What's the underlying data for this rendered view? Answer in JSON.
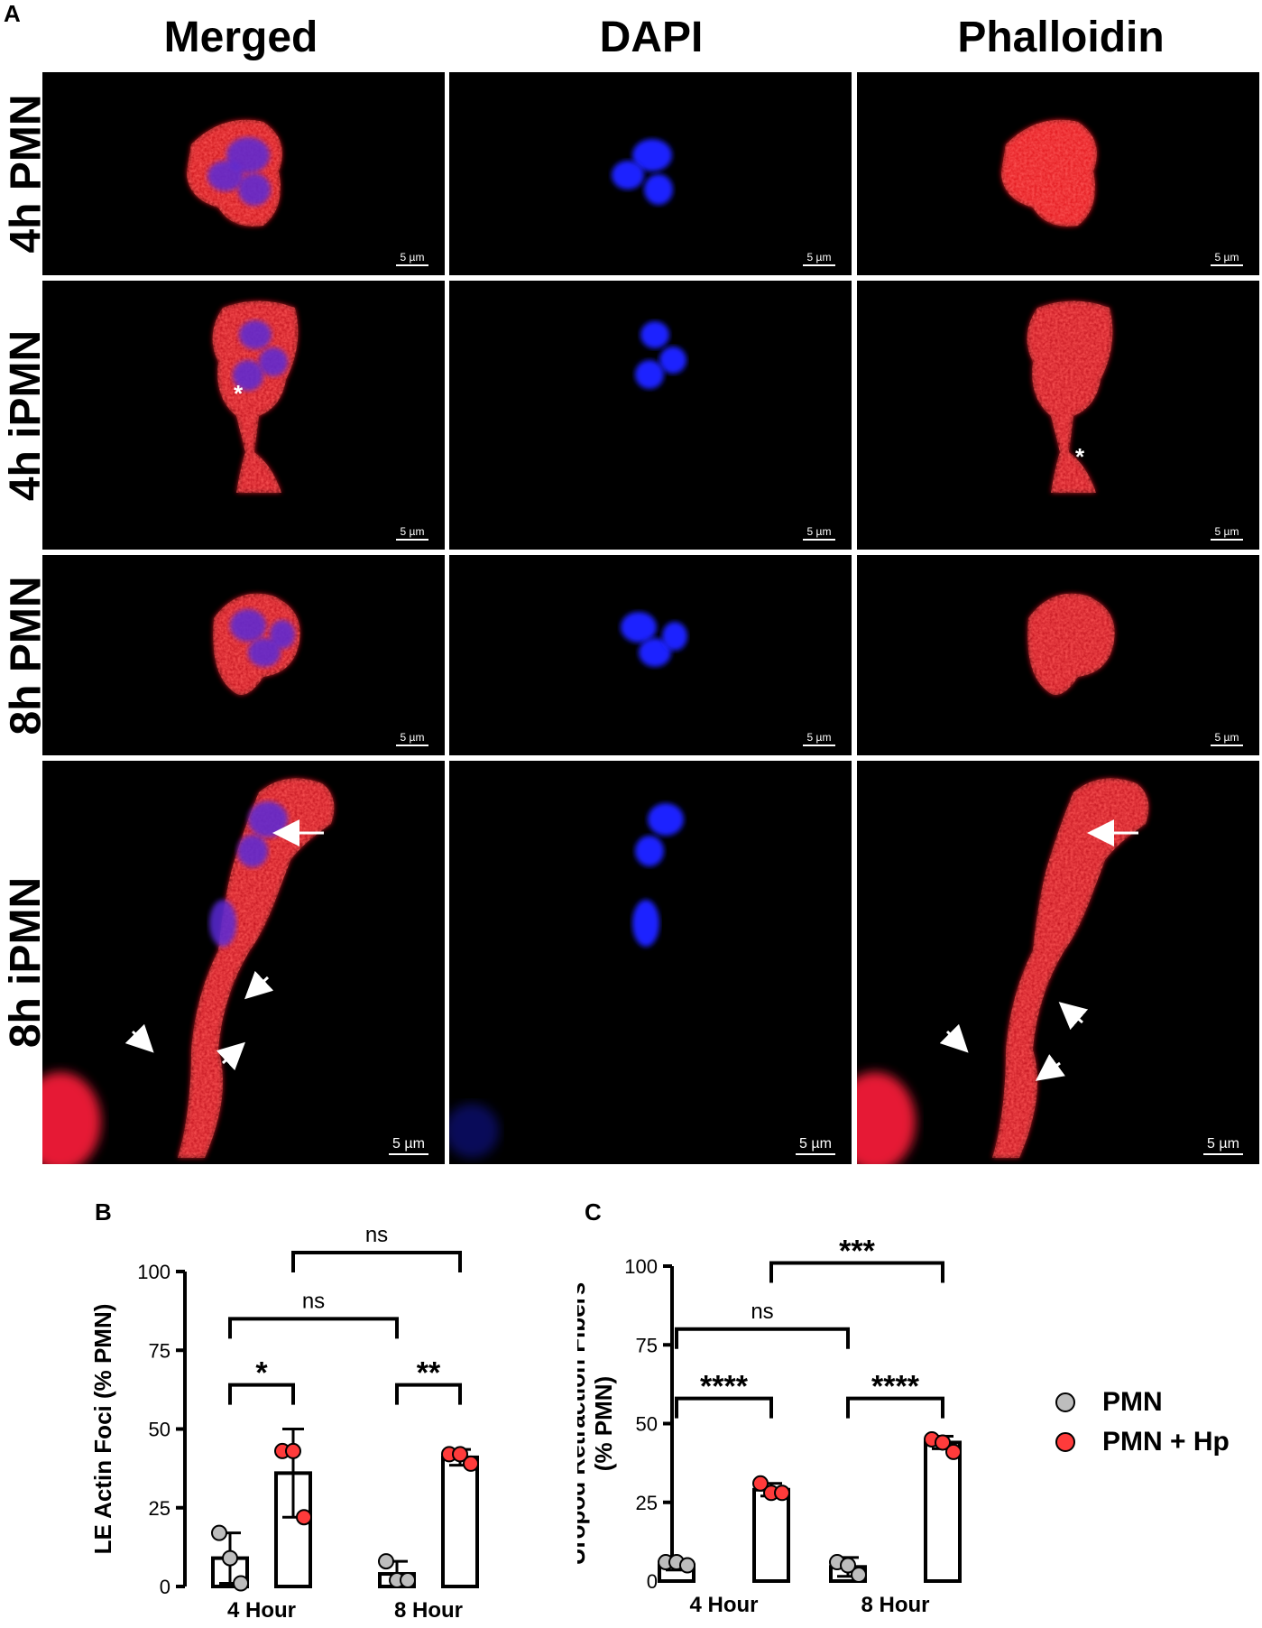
{
  "figure": {
    "panel_letters": {
      "a": "A",
      "b": "B",
      "c": "C"
    },
    "columns": [
      "Merged",
      "DAPI",
      "Phalloidin"
    ],
    "rows": [
      "4h PMN",
      "4h iPMN",
      "8h PMN",
      "8h iPMN"
    ],
    "scale_bar": "5 µm",
    "annotations": {
      "asterisk": "*"
    },
    "colors": {
      "nucleus": "#1a24ff",
      "actin": "#ff1a1a",
      "background": "#000000"
    }
  },
  "legend": {
    "items": [
      {
        "label": "PMN",
        "color": "#bdbdbd"
      },
      {
        "label": "PMN + Hp",
        "color": "#ff3b3b"
      }
    ]
  },
  "chart_data": [
    {
      "type": "bar",
      "ylabel": "LE Actin Foci (% PMN)",
      "categories": [
        "4 Hour",
        "8 Hour"
      ],
      "ylim": [
        0,
        100
      ],
      "yticks": [
        "0",
        "25",
        "50",
        "75",
        "100"
      ],
      "series": [
        {
          "name": "PMN",
          "values": [
            9,
            4
          ],
          "errors": [
            8,
            4
          ],
          "points": [
            [
              17,
              9,
              1
            ],
            [
              8,
              2,
              2
            ]
          ],
          "color": "#bdbdbd"
        },
        {
          "name": "PMN + Hp",
          "values": [
            36,
            41
          ],
          "errors": [
            14,
            2.5
          ],
          "points": [
            [
              43,
              43,
              22
            ],
            [
              42,
              42,
              39
            ]
          ],
          "color": "#ff3b3b"
        }
      ],
      "comparisons": [
        {
          "label": "*",
          "from": [
            0,
            0
          ],
          "to": [
            0,
            1
          ],
          "level": 64
        },
        {
          "label": "**",
          "from": [
            1,
            0
          ],
          "to": [
            1,
            1
          ],
          "level": 64
        },
        {
          "label": "ns",
          "from": [
            0,
            0
          ],
          "to": [
            1,
            0
          ],
          "level": 85
        },
        {
          "label": "ns",
          "from": [
            0,
            1
          ],
          "to": [
            1,
            1
          ],
          "level": 106
        }
      ]
    },
    {
      "type": "bar",
      "ylabel": "Uropod Retraction Fibers (% PMN)",
      "ylabel_lines": [
        "Uropod Retraction Fibers",
        "(% PMN)"
      ],
      "categories": [
        "4 Hour",
        "8 Hour"
      ],
      "ylim": [
        0,
        100
      ],
      "yticks": [
        "0",
        "25",
        "50",
        "75",
        "100"
      ],
      "series": [
        {
          "name": "PMN",
          "values": [
            5,
            4.5
          ],
          "errors": [
            1.5,
            3
          ],
          "points": [
            [
              6,
              6,
              5
            ],
            [
              6,
              5,
              2
            ]
          ],
          "color": "#bdbdbd"
        },
        {
          "name": "PMN + Hp",
          "values": [
            29,
            44
          ],
          "errors": [
            2,
            2
          ],
          "points": [
            [
              31,
              28,
              28
            ],
            [
              45,
              44,
              41
            ]
          ],
          "color": "#ff3b3b"
        }
      ],
      "comparisons": [
        {
          "label": "****",
          "from": [
            0,
            0
          ],
          "to": [
            0,
            1
          ],
          "level": 58
        },
        {
          "label": "****",
          "from": [
            1,
            0
          ],
          "to": [
            1,
            1
          ],
          "level": 58
        },
        {
          "label": "ns",
          "from": [
            0,
            0
          ],
          "to": [
            1,
            0
          ],
          "level": 80
        },
        {
          "label": "***",
          "from": [
            0,
            1
          ],
          "to": [
            1,
            1
          ],
          "level": 101
        }
      ]
    }
  ]
}
